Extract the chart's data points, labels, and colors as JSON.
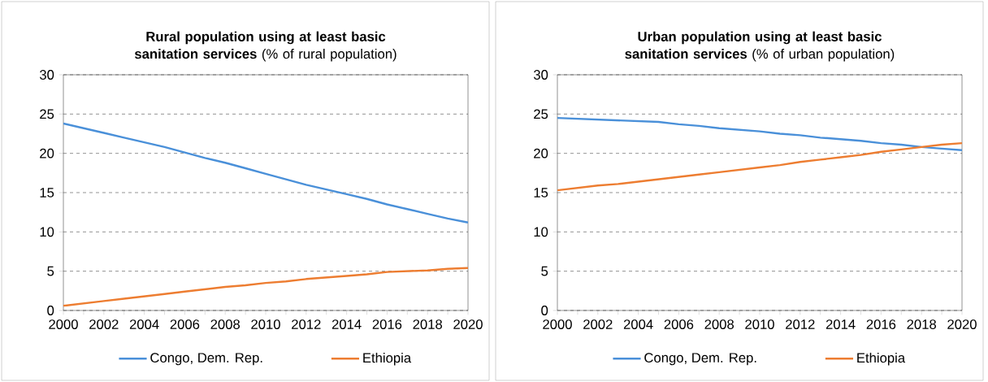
{
  "chart_data": [
    {
      "type": "line",
      "title": "**Rural population using at least basic sanitation services** (% of rural population)",
      "x": [
        2000,
        2001,
        2002,
        2003,
        2004,
        2005,
        2006,
        2007,
        2008,
        2009,
        2010,
        2011,
        2012,
        2013,
        2014,
        2015,
        2016,
        2017,
        2018,
        2019,
        2020
      ],
      "xlim": [
        2000,
        2020
      ],
      "xticks": [
        2000,
        2002,
        2004,
        2006,
        2008,
        2010,
        2012,
        2014,
        2016,
        2018,
        2020
      ],
      "ylim": [
        0,
        30
      ],
      "yticks": [
        0,
        5,
        10,
        15,
        20,
        25,
        30
      ],
      "grid": "y",
      "legend": "bottom",
      "marker": "none",
      "series": [
        {
          "name": "Congo, Dem. Rep.",
          "color": "#4a90d9",
          "values": [
            23.8,
            23.2,
            22.6,
            22.0,
            21.4,
            20.8,
            20.1,
            19.4,
            18.8,
            18.1,
            17.4,
            16.7,
            16.0,
            15.4,
            14.8,
            14.2,
            13.5,
            12.9,
            12.3,
            11.7,
            11.2
          ]
        },
        {
          "name": "Ethiopia",
          "color": "#ed7d31",
          "values": [
            0.6,
            0.9,
            1.2,
            1.5,
            1.8,
            2.1,
            2.4,
            2.7,
            3.0,
            3.2,
            3.5,
            3.7,
            4.0,
            4.2,
            4.4,
            4.6,
            4.9,
            5.0,
            5.1,
            5.3,
            5.4
          ]
        }
      ]
    },
    {
      "type": "line",
      "title": "**Urban population using at least basic sanitation services** (% of urban population)",
      "x": [
        2000,
        2001,
        2002,
        2003,
        2004,
        2005,
        2006,
        2007,
        2008,
        2009,
        2010,
        2011,
        2012,
        2013,
        2014,
        2015,
        2016,
        2017,
        2018,
        2019,
        2020
      ],
      "xlim": [
        2000,
        2020
      ],
      "xticks": [
        2000,
        2002,
        2004,
        2006,
        2008,
        2010,
        2012,
        2014,
        2016,
        2018,
        2020
      ],
      "ylim": [
        0,
        30
      ],
      "yticks": [
        0,
        5,
        10,
        15,
        20,
        25,
        30
      ],
      "grid": "y",
      "legend": "bottom",
      "marker": "none",
      "series": [
        {
          "name": "Congo, Dem. Rep.",
          "color": "#4a90d9",
          "values": [
            24.5,
            24.4,
            24.3,
            24.2,
            24.1,
            24.0,
            23.7,
            23.5,
            23.2,
            23.0,
            22.8,
            22.5,
            22.3,
            22.0,
            21.8,
            21.6,
            21.3,
            21.1,
            20.8,
            20.6,
            20.4
          ]
        },
        {
          "name": "Ethiopia",
          "color": "#ed7d31",
          "values": [
            15.3,
            15.6,
            15.9,
            16.1,
            16.4,
            16.7,
            17.0,
            17.3,
            17.6,
            17.9,
            18.2,
            18.5,
            18.9,
            19.2,
            19.5,
            19.8,
            20.2,
            20.5,
            20.8,
            21.1,
            21.3
          ]
        }
      ]
    }
  ]
}
